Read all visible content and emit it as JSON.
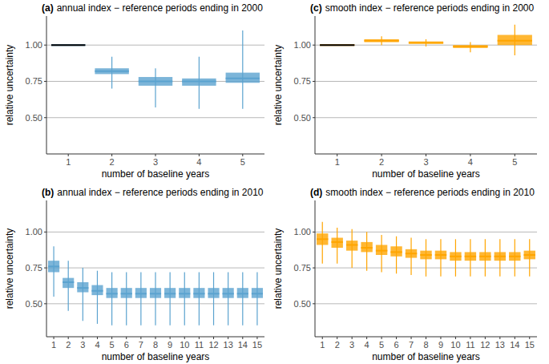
{
  "chart_data": [
    {
      "type": "box",
      "panel": "(a)",
      "title": "annual index − reference periods ending in 2000",
      "x_label": "number of baseline years",
      "y_label": "relative uncertainty",
      "categories": [
        "1",
        "2",
        "3",
        "4",
        "5"
      ],
      "ylim": [
        0.25,
        1.2
      ],
      "yticks": [
        {
          "value": 0.5,
          "label": "0.50"
        },
        {
          "value": 0.75,
          "label": "0.75"
        },
        {
          "value": 1.0,
          "label": "1.00"
        }
      ],
      "grid": true,
      "series": [
        {
          "color": "#5ba3cf",
          "whisker_low": [
            1.0,
            0.7,
            0.57,
            0.56,
            0.56
          ],
          "q1": [
            1.0,
            0.8,
            0.72,
            0.72,
            0.74
          ],
          "median": [
            1.0,
            0.82,
            0.75,
            0.75,
            0.77
          ],
          "q3": [
            1.0,
            0.84,
            0.78,
            0.77,
            0.81
          ],
          "whisker_high": [
            1.0,
            0.92,
            0.84,
            0.92,
            1.1
          ]
        }
      ]
    },
    {
      "type": "box",
      "panel": "(b)",
      "title": "annual index − reference periods ending in 2010",
      "x_label": "number of baseline years",
      "y_label": "relative uncertainty",
      "categories": [
        "1",
        "2",
        "3",
        "4",
        "5",
        "6",
        "7",
        "8",
        "9",
        "10",
        "11",
        "12",
        "13",
        "14",
        "15"
      ],
      "ylim": [
        0.27,
        1.22
      ],
      "yticks": [
        {
          "value": 0.5,
          "label": "0.50"
        },
        {
          "value": 0.75,
          "label": "0.75"
        },
        {
          "value": 1.0,
          "label": "1.00"
        }
      ],
      "grid": true,
      "series": [
        {
          "color": "#5ba3cf",
          "whisker_low": [
            0.55,
            0.45,
            0.38,
            0.36,
            0.35,
            0.35,
            0.35,
            0.35,
            0.35,
            0.35,
            0.35,
            0.35,
            0.35,
            0.35,
            0.35
          ],
          "q1": [
            0.72,
            0.61,
            0.58,
            0.56,
            0.54,
            0.54,
            0.54,
            0.54,
            0.54,
            0.54,
            0.54,
            0.54,
            0.54,
            0.54,
            0.54
          ],
          "median": [
            0.76,
            0.65,
            0.61,
            0.59,
            0.57,
            0.57,
            0.57,
            0.57,
            0.57,
            0.57,
            0.57,
            0.57,
            0.57,
            0.57,
            0.57
          ],
          "q3": [
            0.8,
            0.68,
            0.65,
            0.63,
            0.61,
            0.61,
            0.61,
            0.61,
            0.61,
            0.61,
            0.61,
            0.61,
            0.61,
            0.61,
            0.61
          ],
          "whisker_high": [
            0.9,
            0.8,
            0.75,
            0.73,
            0.72,
            0.72,
            0.72,
            0.72,
            0.72,
            0.72,
            0.72,
            0.72,
            0.72,
            0.72,
            0.72
          ]
        }
      ]
    },
    {
      "type": "box",
      "panel": "(c)",
      "title": "smooth index − reference periods ending in 2000",
      "x_label": "number of baseline years",
      "y_label": "relative uncertainty",
      "categories": [
        "1",
        "2",
        "3",
        "4",
        "5"
      ],
      "ylim": [
        0.25,
        1.2
      ],
      "yticks": [
        {
          "value": 0.5,
          "label": "0.50"
        },
        {
          "value": 0.75,
          "label": "0.75"
        },
        {
          "value": 1.0,
          "label": "1.00"
        }
      ],
      "grid": true,
      "series": [
        {
          "color": "#ffa500",
          "whisker_low": [
            1.0,
            1.0,
            0.99,
            0.95,
            0.93
          ],
          "q1": [
            1.0,
            1.02,
            1.01,
            0.98,
            1.0
          ],
          "median": [
            1.0,
            1.03,
            1.015,
            0.99,
            1.03
          ],
          "q3": [
            1.0,
            1.04,
            1.025,
            1.0,
            1.07
          ],
          "whisker_high": [
            1.0,
            1.06,
            1.04,
            1.02,
            1.14
          ]
        }
      ]
    },
    {
      "type": "box",
      "panel": "(d)",
      "title": "smooth index − reference periods ending in 2010",
      "x_label": "number of baseline years",
      "y_label": "relative uncertainty",
      "categories": [
        "1",
        "2",
        "3",
        "4",
        "5",
        "6",
        "7",
        "8",
        "9",
        "10",
        "11",
        "12",
        "13",
        "14",
        "15"
      ],
      "ylim": [
        0.27,
        1.22
      ],
      "yticks": [
        {
          "value": 0.5,
          "label": "0.50"
        },
        {
          "value": 0.75,
          "label": "0.75"
        },
        {
          "value": 1.0,
          "label": "1.00"
        }
      ],
      "grid": true,
      "series": [
        {
          "color": "#ffa500",
          "whisker_low": [
            0.78,
            0.78,
            0.75,
            0.73,
            0.72,
            0.71,
            0.7,
            0.69,
            0.69,
            0.69,
            0.69,
            0.69,
            0.69,
            0.69,
            0.69
          ],
          "q1": [
            0.91,
            0.89,
            0.87,
            0.86,
            0.84,
            0.83,
            0.82,
            0.81,
            0.81,
            0.8,
            0.8,
            0.8,
            0.8,
            0.8,
            0.81
          ],
          "median": [
            0.95,
            0.93,
            0.91,
            0.89,
            0.87,
            0.86,
            0.85,
            0.84,
            0.84,
            0.83,
            0.83,
            0.83,
            0.83,
            0.83,
            0.84
          ],
          "q3": [
            0.99,
            0.96,
            0.94,
            0.93,
            0.91,
            0.9,
            0.88,
            0.87,
            0.87,
            0.86,
            0.86,
            0.86,
            0.86,
            0.86,
            0.87
          ],
          "whisker_high": [
            1.07,
            1.03,
            1.02,
            1.0,
            0.98,
            0.97,
            0.96,
            0.95,
            0.95,
            0.95,
            0.95,
            0.95,
            0.95,
            0.95,
            0.95
          ]
        }
      ]
    }
  ]
}
